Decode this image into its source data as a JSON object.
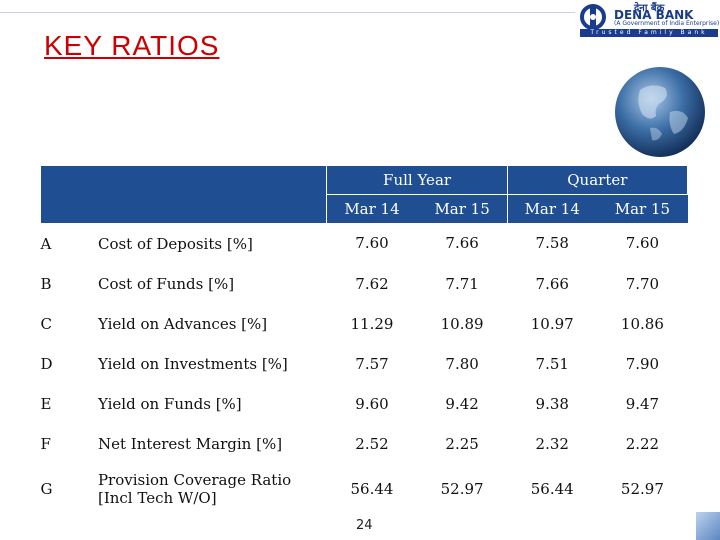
{
  "slide": {
    "title": "KEY RATIOS",
    "page_number": "24"
  },
  "logo": {
    "hindi_text": "देना बैंक",
    "name": "DENA BANK",
    "govt_text": "(A Government of India Enterprise)",
    "tagline": "Trusted Family Bank"
  },
  "table": {
    "groups": [
      "Full Year",
      "Quarter"
    ],
    "columns": [
      "Mar 14",
      "Mar 15",
      "Mar 14",
      "Mar 15"
    ],
    "rows": [
      {
        "code": "A",
        "metric": "Cost of Deposits [%]",
        "values": [
          "7.60",
          "7.66",
          "7.58",
          "7.60"
        ]
      },
      {
        "code": "B",
        "metric": "Cost of Funds [%]",
        "values": [
          "7.62",
          "7.71",
          "7.66",
          "7.70"
        ]
      },
      {
        "code": "C",
        "metric": "Yield on Advances [%]",
        "values": [
          "11.29",
          "10.89",
          "10.97",
          "10.86"
        ]
      },
      {
        "code": "D",
        "metric": "Yield on Investments  [%]",
        "values": [
          "7.57",
          "7.80",
          "7.51",
          "7.90"
        ]
      },
      {
        "code": "E",
        "metric": "Yield on Funds [%]",
        "values": [
          "9.60",
          "9.42",
          "9.38",
          "9.47"
        ]
      },
      {
        "code": "F",
        "metric": "Net Interest Margin  [%]",
        "values": [
          "2.52",
          "2.25",
          "2.32",
          "2.22"
        ]
      },
      {
        "code": "G",
        "metric": "Provision Coverage Ratio [Incl Tech W/O]",
        "values": [
          "56.44",
          "52.97",
          "56.44",
          "52.97"
        ]
      }
    ]
  },
  "colors": {
    "title": "#cc0000",
    "header_bg": "#1f4e92",
    "header_text": "#ffffff",
    "logo_blue": "#1a3c8c"
  }
}
